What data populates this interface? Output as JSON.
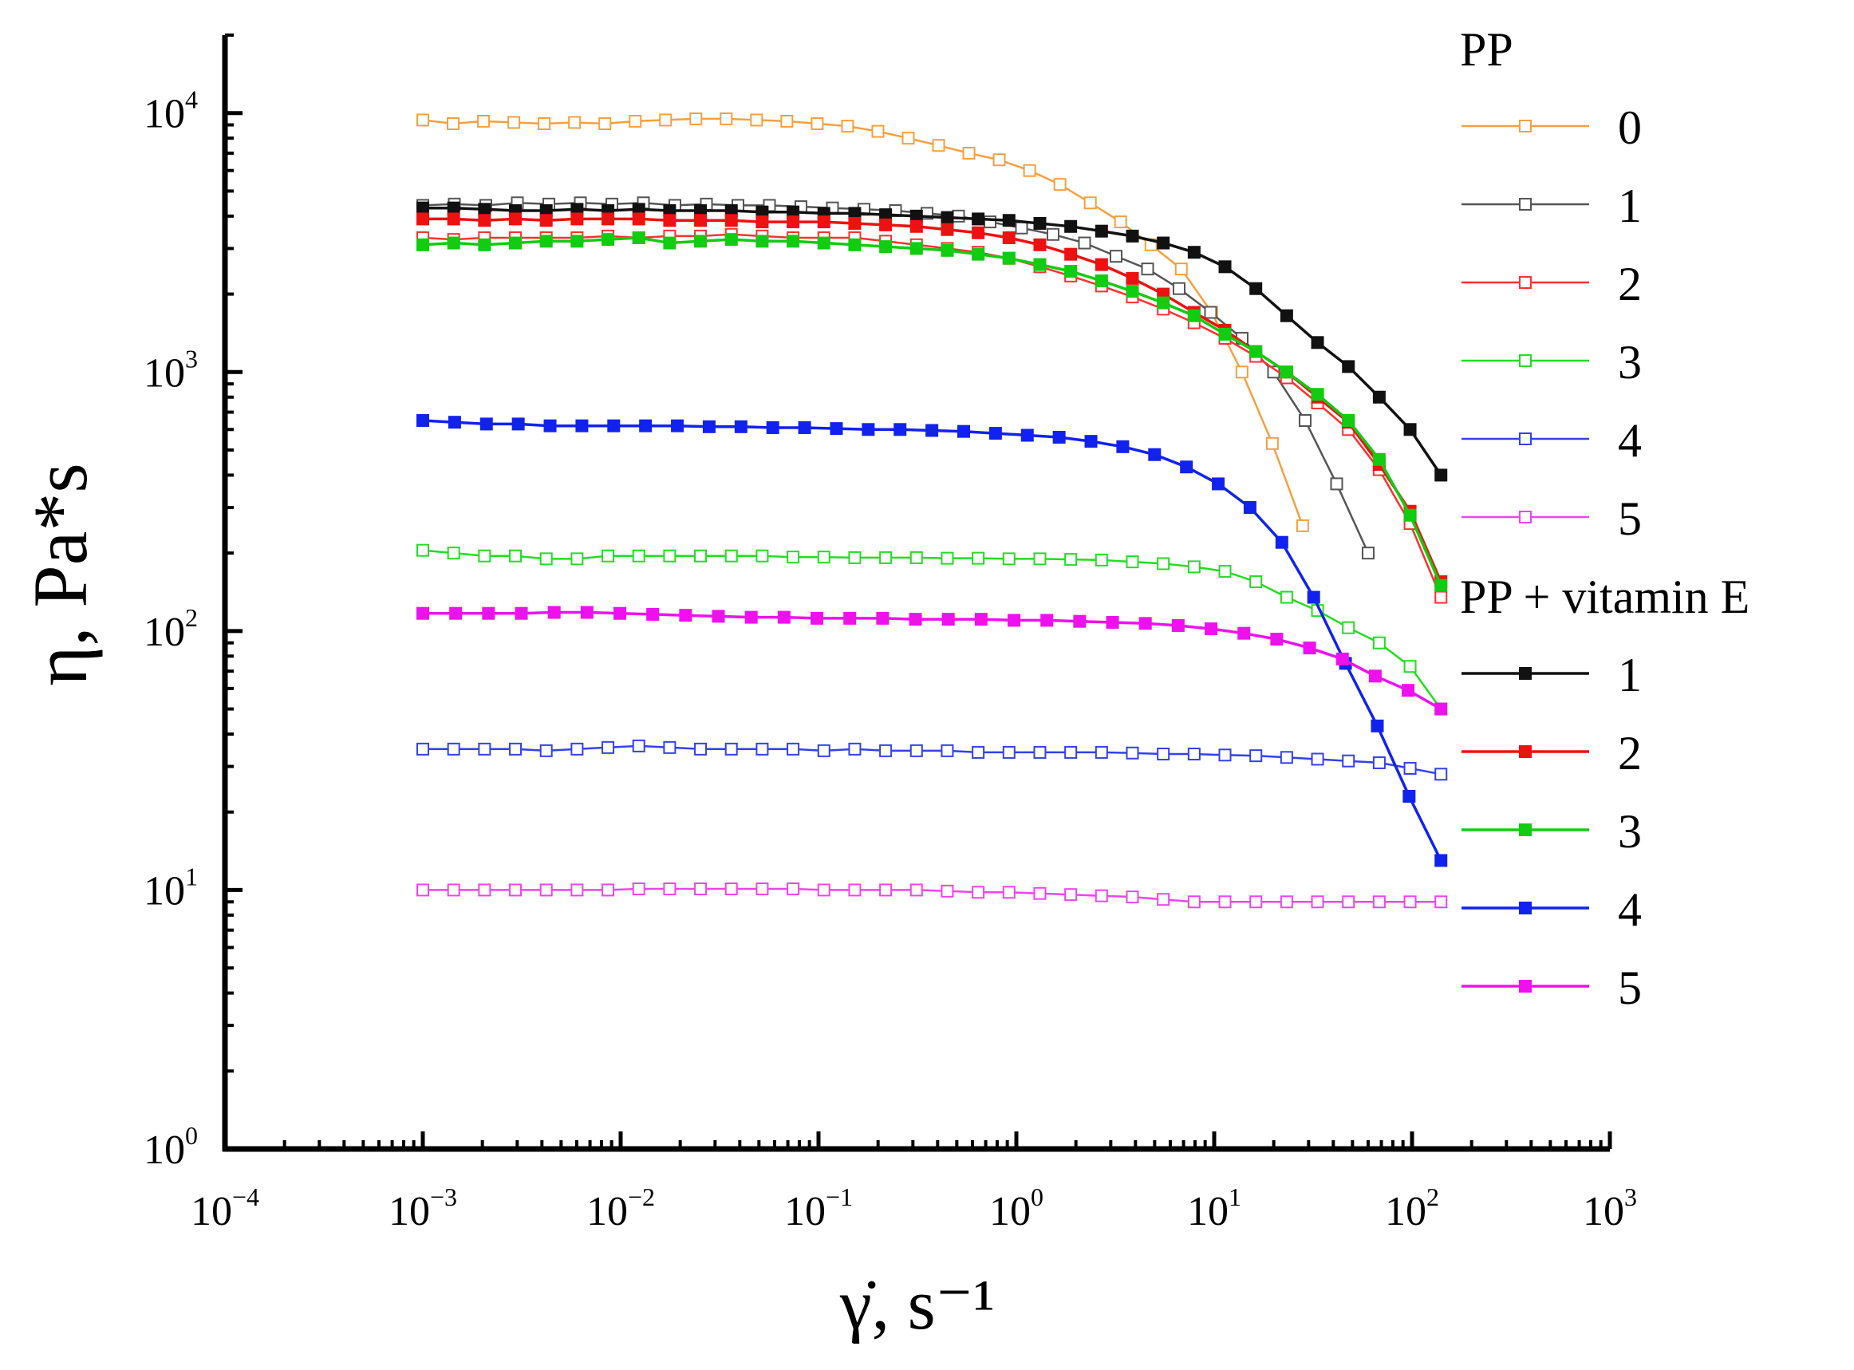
{
  "chart_data": {
    "type": "line",
    "x_scale": "log",
    "y_scale": "log",
    "xlim": [
      0.0001,
      1000
    ],
    "ylim": [
      1,
      20000
    ],
    "xlabel": "γ̇, s⁻¹",
    "ylabel": "η, Pa*s",
    "x_ticks": [
      {
        "base": "10",
        "exp": "−4",
        "value": 0.0001
      },
      {
        "base": "10",
        "exp": "−3",
        "value": 0.001
      },
      {
        "base": "10",
        "exp": "−2",
        "value": 0.01
      },
      {
        "base": "10",
        "exp": "−1",
        "value": 0.1
      },
      {
        "base": "10",
        "exp": "0",
        "value": 1
      },
      {
        "base": "10",
        "exp": "1",
        "value": 10
      },
      {
        "base": "10",
        "exp": "2",
        "value": 100
      },
      {
        "base": "10",
        "exp": "3",
        "value": 1000
      }
    ],
    "y_ticks": [
      {
        "base": "10",
        "exp": "0",
        "value": 1
      },
      {
        "base": "10",
        "exp": "1",
        "value": 10
      },
      {
        "base": "10",
        "exp": "2",
        "value": 100
      },
      {
        "base": "10",
        "exp": "3",
        "value": 1000
      },
      {
        "base": "10",
        "exp": "4",
        "value": 10000
      }
    ],
    "legend_groups": [
      {
        "title": "PP",
        "filled": false,
        "entries": [
          "0",
          "1",
          "2",
          "3",
          "4",
          "5"
        ]
      },
      {
        "title": "PP + vitamin E",
        "filled": true,
        "entries": [
          "1",
          "2",
          "3",
          "4",
          "5"
        ]
      }
    ],
    "series": [
      {
        "name": "PP 0",
        "group": "PP",
        "label": "0",
        "color": "#f5a040",
        "filled": false,
        "x_min": 0.001,
        "x_max": 28,
        "y": [
          9400,
          9100,
          9300,
          9200,
          9100,
          9200,
          9100,
          9300,
          9400,
          9500,
          9500,
          9400,
          9300,
          9100,
          8900,
          8500,
          8000,
          7500,
          7000,
          6600,
          6000,
          5300,
          4500,
          3800,
          3100,
          2500,
          1700,
          1000,
          530,
          255
        ]
      },
      {
        "name": "PP 1",
        "group": "PP",
        "label": "1",
        "color": "#555555",
        "filled": false,
        "x_min": 0.001,
        "x_max": 60,
        "y": [
          4400,
          4450,
          4400,
          4500,
          4450,
          4500,
          4450,
          4500,
          4400,
          4450,
          4400,
          4400,
          4350,
          4300,
          4250,
          4200,
          4100,
          4000,
          3800,
          3600,
          3400,
          3150,
          2800,
          2500,
          2100,
          1700,
          1350,
          1000,
          650,
          370,
          200
        ]
      },
      {
        "name": "PP 2",
        "group": "PP",
        "label": "2",
        "color": "#ff3030",
        "filled": false,
        "x_min": 0.001,
        "x_max": 140,
        "y": [
          3300,
          3250,
          3300,
          3300,
          3300,
          3300,
          3350,
          3300,
          3350,
          3350,
          3400,
          3350,
          3300,
          3300,
          3300,
          3200,
          3100,
          3000,
          2900,
          2750,
          2550,
          2350,
          2150,
          1950,
          1750,
          1550,
          1350,
          1150,
          950,
          760,
          600,
          420,
          260,
          135
        ]
      },
      {
        "name": "PP 3",
        "group": "PP",
        "label": "3",
        "color": "#22dd22",
        "filled": false,
        "x_min": 0.001,
        "x_max": 140,
        "y": [
          205,
          200,
          195,
          195,
          190,
          190,
          195,
          195,
          195,
          195,
          195,
          195,
          193,
          193,
          192,
          192,
          192,
          191,
          191,
          190,
          190,
          189,
          188,
          185,
          182,
          177,
          170,
          155,
          135,
          120,
          103,
          90,
          73,
          50
        ]
      },
      {
        "name": "PP 4",
        "group": "PP",
        "label": "4",
        "color": "#3340ee",
        "filled": false,
        "x_min": 0.001,
        "x_max": 140,
        "y": [
          35,
          35,
          35,
          35,
          34.5,
          35,
          35.5,
          36,
          35.5,
          35,
          35,
          35,
          35,
          34.5,
          35,
          34.5,
          34.5,
          34.5,
          34,
          34,
          34,
          34,
          34,
          33.8,
          33.5,
          33.5,
          33.2,
          33,
          32.5,
          32,
          31.5,
          31,
          29.5,
          28
        ]
      },
      {
        "name": "PP 5",
        "group": "PP",
        "label": "5",
        "color": "#ee44ee",
        "filled": false,
        "x_min": 0.001,
        "x_max": 140,
        "y": [
          10,
          10,
          10,
          10,
          10,
          10,
          10,
          10.1,
          10.1,
          10.1,
          10.1,
          10.1,
          10.1,
          10,
          10,
          10,
          10,
          9.9,
          9.8,
          9.8,
          9.7,
          9.6,
          9.5,
          9.4,
          9.2,
          9,
          9,
          9,
          9,
          9,
          9,
          9,
          9,
          9
        ]
      },
      {
        "name": "PP + vitamin E 1",
        "group": "PP + vitamin E",
        "label": "1",
        "color": "#111111",
        "filled": true,
        "x_min": 0.001,
        "x_max": 140,
        "y": [
          4300,
          4300,
          4250,
          4200,
          4200,
          4250,
          4200,
          4250,
          4200,
          4200,
          4200,
          4150,
          4150,
          4100,
          4100,
          4050,
          4000,
          3950,
          3900,
          3850,
          3750,
          3650,
          3500,
          3350,
          3150,
          2900,
          2550,
          2100,
          1650,
          1300,
          1050,
          800,
          600,
          400
        ]
      },
      {
        "name": "PP + vitamin E 2",
        "group": "PP + vitamin E",
        "label": "2",
        "color": "#ee1111",
        "filled": true,
        "x_min": 0.001,
        "x_max": 140,
        "y": [
          3900,
          3900,
          3850,
          3900,
          3850,
          3900,
          3900,
          3900,
          3850,
          3850,
          3850,
          3800,
          3800,
          3800,
          3750,
          3700,
          3650,
          3550,
          3450,
          3300,
          3100,
          2850,
          2600,
          2300,
          2000,
          1700,
          1450,
          1200,
          1000,
          800,
          640,
          440,
          290,
          155
        ]
      },
      {
        "name": "PP + vitamin E 3",
        "group": "PP + vitamin E",
        "label": "3",
        "color": "#11cc11",
        "filled": true,
        "x_min": 0.001,
        "x_max": 140,
        "y": [
          3100,
          3150,
          3100,
          3150,
          3200,
          3200,
          3250,
          3300,
          3150,
          3200,
          3250,
          3200,
          3200,
          3150,
          3100,
          3050,
          3000,
          2950,
          2850,
          2750,
          2600,
          2450,
          2250,
          2050,
          1850,
          1650,
          1400,
          1200,
          1000,
          820,
          650,
          460,
          280,
          150
        ]
      },
      {
        "name": "PP + vitamin E 4",
        "group": "PP + vitamin E",
        "label": "4",
        "color": "#1122ee",
        "filled": true,
        "x_min": 0.001,
        "x_max": 140,
        "y": [
          650,
          640,
          630,
          630,
          620,
          620,
          620,
          620,
          620,
          615,
          615,
          610,
          610,
          605,
          600,
          600,
          595,
          590,
          580,
          570,
          560,
          540,
          515,
          480,
          430,
          370,
          300,
          220,
          135,
          75,
          43,
          23,
          13
        ]
      },
      {
        "name": "PP + vitamin E 5",
        "group": "PP + vitamin E",
        "label": "5",
        "color": "#ee11ee",
        "filled": true,
        "x_min": 0.001,
        "x_max": 140,
        "y": [
          117,
          117,
          117,
          117,
          118,
          118,
          117,
          116,
          115,
          114,
          113,
          113,
          112,
          112,
          112,
          111,
          111,
          111,
          110,
          110,
          109,
          108,
          107,
          105,
          102,
          98,
          93,
          86,
          78,
          67,
          59,
          50
        ]
      }
    ]
  }
}
